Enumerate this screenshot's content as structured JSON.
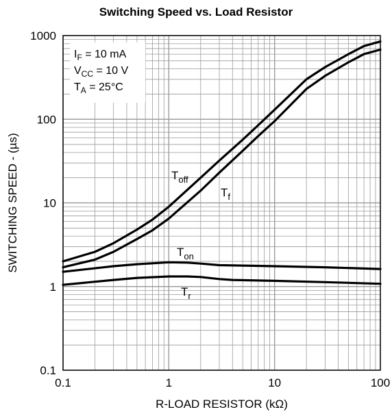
{
  "chart_data": {
    "type": "line",
    "title": "Switching Speed vs. Load Resistor",
    "xlabel": "R-LOAD RESISTOR (kΩ)",
    "ylabel": "SWITCHING SPEED - (µs)",
    "xscale": "log",
    "yscale": "log",
    "xlim": [
      0.1,
      100
    ],
    "ylim": [
      0.1,
      1000
    ],
    "grid": true,
    "x_tick_labels": [
      "0.1",
      "1",
      "10",
      "100"
    ],
    "y_tick_labels": [
      "0.1",
      "1",
      "10",
      "100",
      "1000"
    ],
    "conditions": [
      {
        "main": "I",
        "sub": "F",
        "rest": " = 10 mA"
      },
      {
        "main": "V",
        "sub": "CC",
        "rest": " = 10 V"
      },
      {
        "main": "T",
        "sub": "A",
        "rest": " = 25°C"
      }
    ],
    "series": [
      {
        "name_main": "T",
        "name_sub": "off",
        "x": [
          0.1,
          0.2,
          0.3,
          0.5,
          0.7,
          1,
          2,
          3,
          5,
          7,
          10,
          20,
          30,
          50,
          70,
          100
        ],
        "y": [
          2.0,
          2.6,
          3.3,
          4.8,
          6.3,
          9.0,
          20,
          32,
          57,
          85,
          130,
          300,
          420,
          600,
          750,
          850
        ]
      },
      {
        "name_main": "T",
        "name_sub": "f",
        "x": [
          0.1,
          0.2,
          0.3,
          0.5,
          0.7,
          1,
          2,
          3,
          5,
          7,
          10,
          20,
          30,
          50,
          70,
          100
        ],
        "y": [
          1.7,
          2.1,
          2.6,
          3.7,
          4.7,
          6.5,
          14,
          23,
          42,
          63,
          95,
          230,
          330,
          480,
          600,
          680
        ]
      },
      {
        "name_main": "T",
        "name_sub": "on",
        "x": [
          0.1,
          0.3,
          0.5,
          1,
          1.5,
          2,
          3,
          5,
          10,
          30,
          100
        ],
        "y": [
          1.5,
          1.75,
          1.85,
          1.95,
          1.93,
          1.88,
          1.8,
          1.78,
          1.75,
          1.7,
          1.62
        ]
      },
      {
        "name_main": "T",
        "name_sub": "r",
        "x": [
          0.1,
          0.3,
          0.5,
          1,
          1.5,
          2,
          3,
          4,
          10,
          30,
          100
        ],
        "y": [
          1.05,
          1.2,
          1.27,
          1.32,
          1.32,
          1.3,
          1.23,
          1.2,
          1.17,
          1.13,
          1.08
        ]
      }
    ]
  }
}
